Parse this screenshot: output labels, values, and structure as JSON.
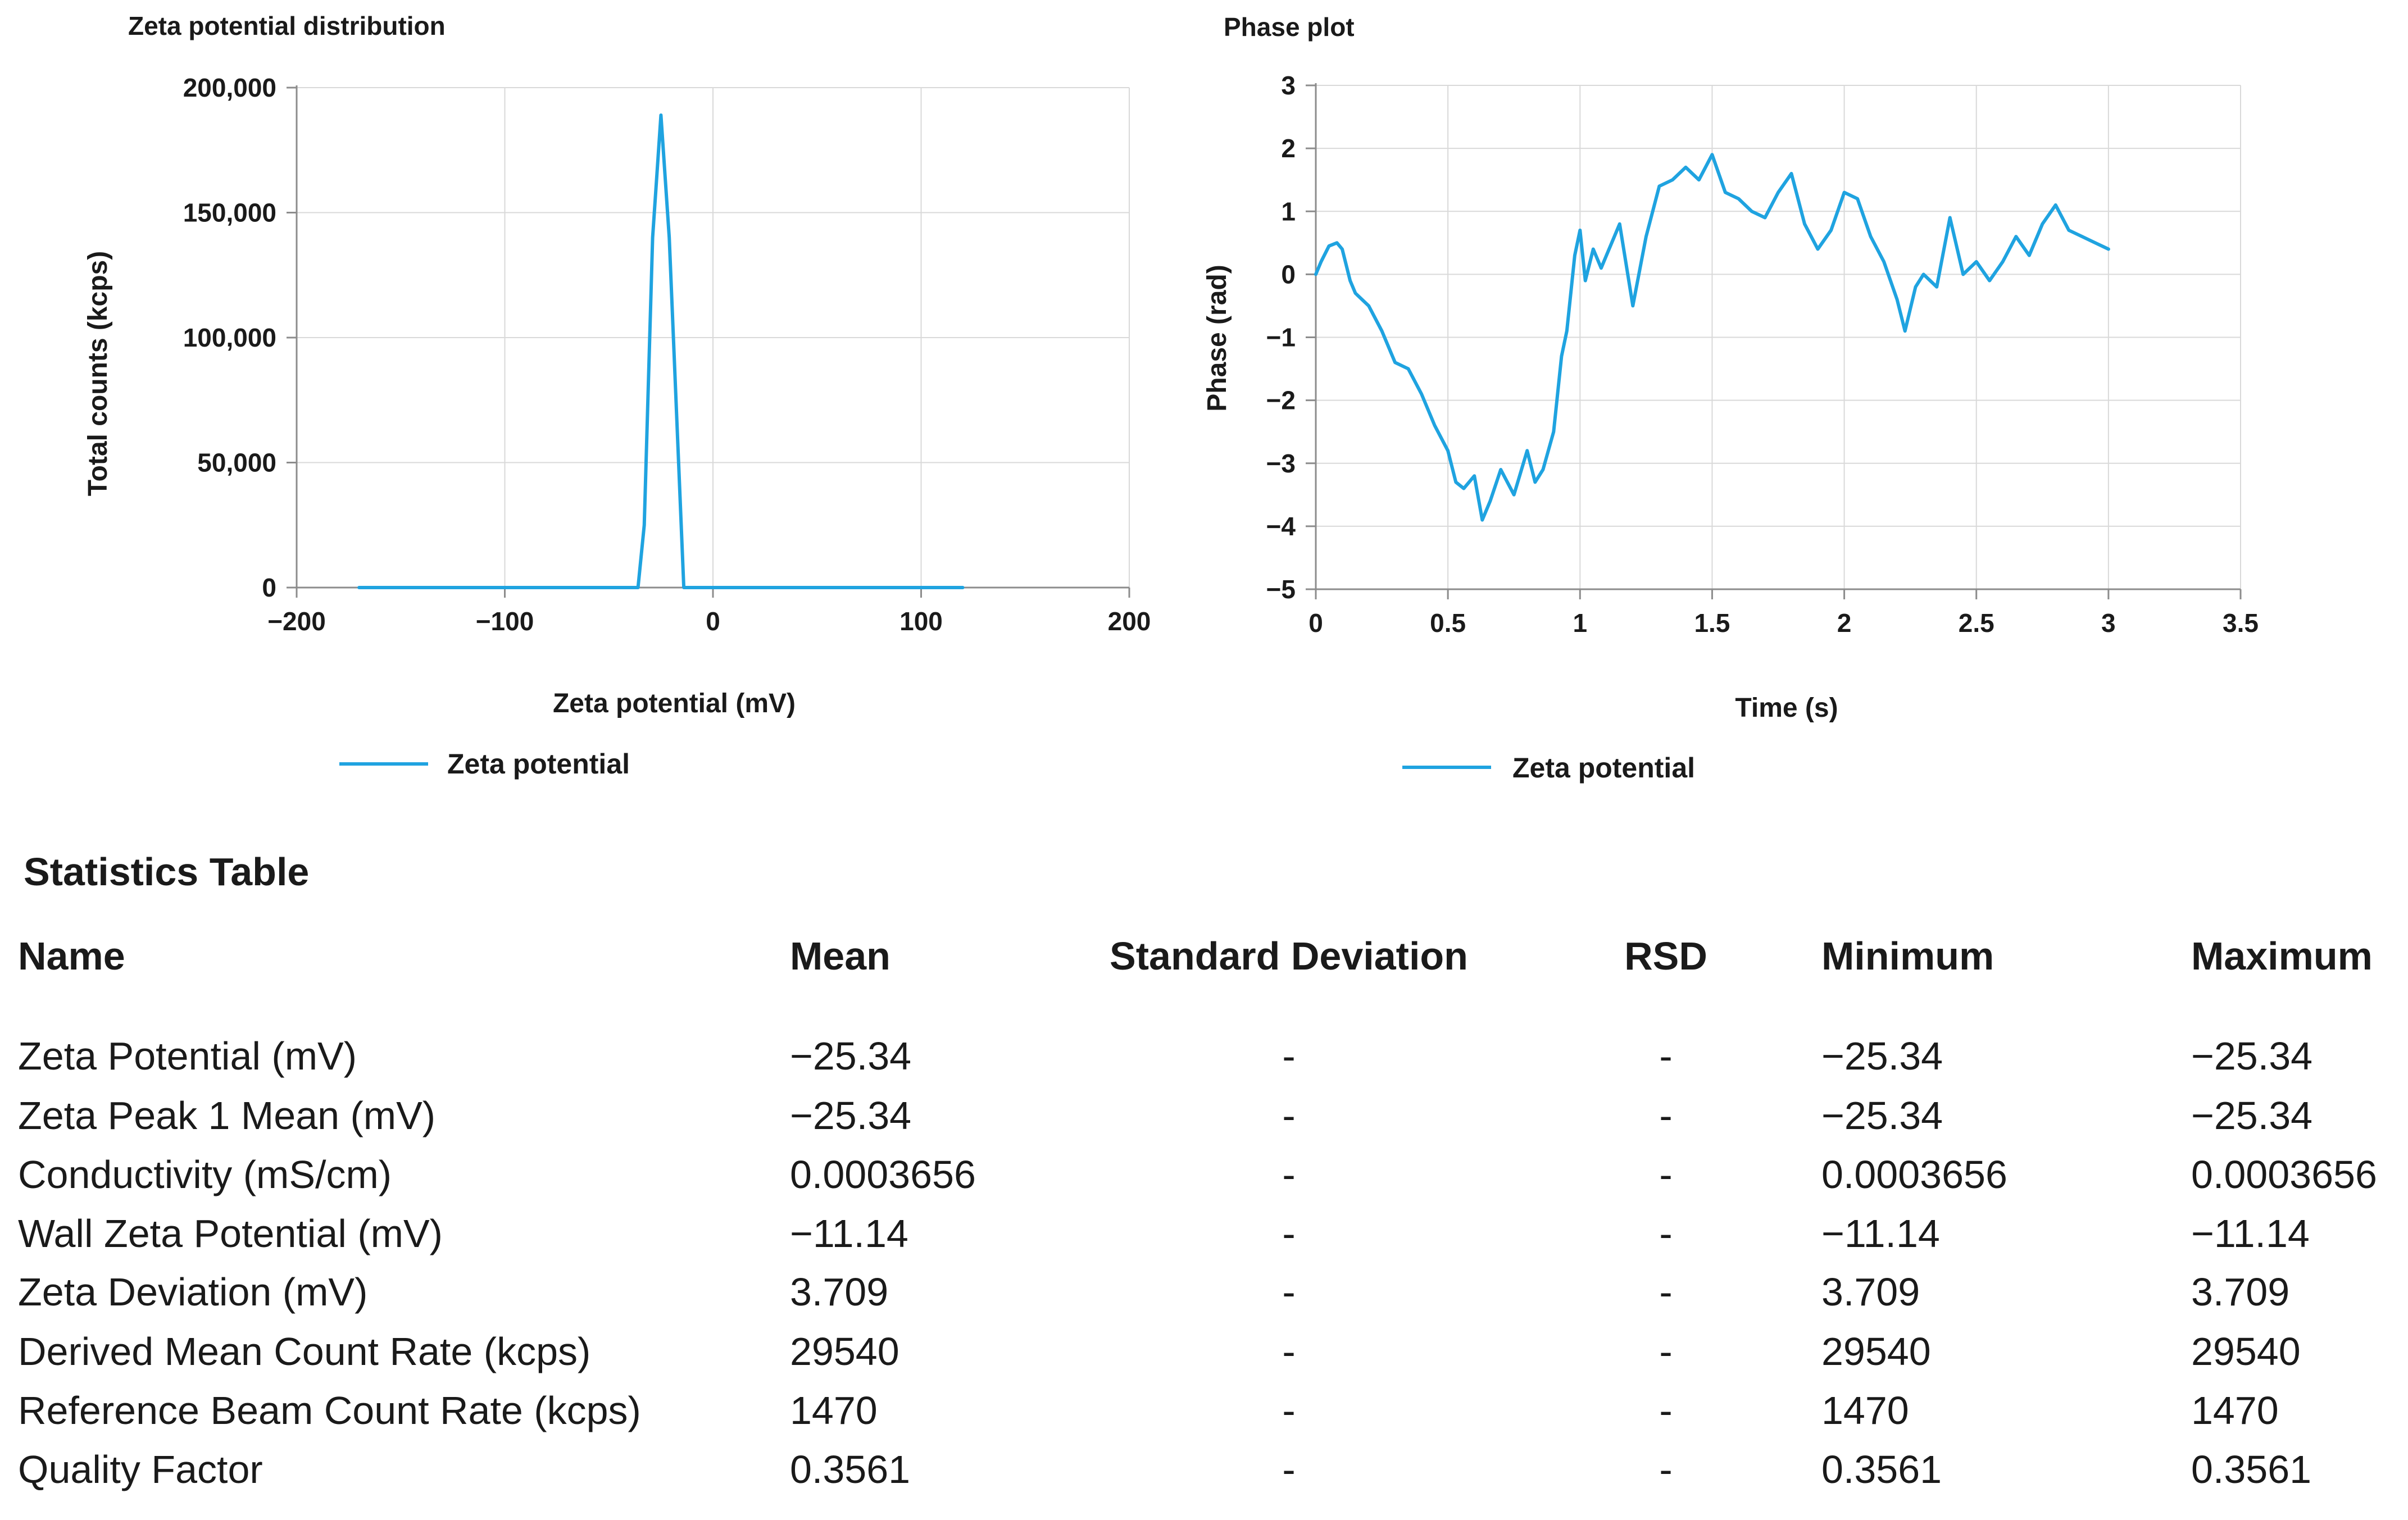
{
  "chart_data": [
    {
      "type": "line",
      "title": "Zeta potential distribution",
      "xlabel": "Zeta potential (mV)",
      "ylabel": "Total counts (kcps)",
      "xlim": [
        -200,
        200
      ],
      "ylim": [
        0,
        200000
      ],
      "xticks": [
        -200,
        -100,
        0,
        100,
        200
      ],
      "xtick_labels": [
        "−200",
        "−100",
        "0",
        "100",
        "200"
      ],
      "yticks": [
        0,
        50000,
        100000,
        150000,
        200000
      ],
      "ytick_labels": [
        "0",
        "50,000",
        "100,000",
        "150,000",
        "200,000"
      ],
      "grid": true,
      "legend": "bottom-left",
      "series": [
        {
          "name": "Zeta potential",
          "color": "#1fa3e0",
          "x": [
            -170,
            -36,
            -33,
            -29,
            -25,
            -21,
            -17,
            -14,
            120
          ],
          "y": [
            0,
            0,
            25000,
            140000,
            189000,
            140000,
            60000,
            0,
            0
          ]
        }
      ]
    },
    {
      "type": "line",
      "title": "Phase plot",
      "xlabel": "Time (s)",
      "ylabel": "Phase (rad)",
      "xlim": [
        0,
        3.5
      ],
      "ylim": [
        -5,
        3
      ],
      "xticks": [
        0,
        0.5,
        1,
        1.5,
        2,
        2.5,
        3,
        3.5
      ],
      "xtick_labels": [
        "0",
        "0.5",
        "1",
        "1.5",
        "2",
        "2.5",
        "3",
        "3.5"
      ],
      "yticks": [
        -5,
        -4,
        -3,
        -2,
        -1,
        0,
        1,
        2,
        3
      ],
      "ytick_labels": [
        "−5",
        "−4",
        "−3",
        "−2",
        "−1",
        "0",
        "1",
        "2",
        "3"
      ],
      "grid": true,
      "legend": "bottom-left",
      "series": [
        {
          "name": "Zeta potential",
          "color": "#1fa3e0",
          "x": [
            0,
            0.02,
            0.05,
            0.08,
            0.1,
            0.13,
            0.15,
            0.2,
            0.25,
            0.3,
            0.35,
            0.4,
            0.45,
            0.5,
            0.53,
            0.56,
            0.6,
            0.63,
            0.66,
            0.7,
            0.75,
            0.8,
            0.83,
            0.86,
            0.9,
            0.93,
            0.95,
            0.98,
            1.0,
            1.02,
            1.05,
            1.08,
            1.1,
            1.15,
            1.2,
            1.25,
            1.3,
            1.35,
            1.4,
            1.45,
            1.5,
            1.55,
            1.6,
            1.65,
            1.7,
            1.75,
            1.8,
            1.85,
            1.9,
            1.95,
            2.0,
            2.05,
            2.1,
            2.15,
            2.2,
            2.23,
            2.27,
            2.3,
            2.35,
            2.4,
            2.45,
            2.5,
            2.55,
            2.6,
            2.65,
            2.7,
            2.75,
            2.8,
            2.85,
            2.9,
            2.95,
            3.0
          ],
          "y": [
            0,
            0.2,
            0.45,
            0.5,
            0.4,
            -0.1,
            -0.3,
            -0.5,
            -0.9,
            -1.4,
            -1.5,
            -1.9,
            -2.4,
            -2.8,
            -3.3,
            -3.4,
            -3.2,
            -3.9,
            -3.6,
            -3.1,
            -3.5,
            -2.8,
            -3.3,
            -3.1,
            -2.5,
            -1.3,
            -0.9,
            0.3,
            0.7,
            -0.1,
            0.4,
            0.1,
            0.3,
            0.8,
            -0.5,
            0.6,
            1.4,
            1.5,
            1.7,
            1.5,
            1.9,
            1.3,
            1.2,
            1.0,
            0.9,
            1.3,
            1.6,
            0.8,
            0.4,
            0.7,
            1.3,
            1.2,
            0.6,
            0.2,
            -0.4,
            -0.9,
            -0.2,
            0.0,
            -0.2,
            0.9,
            0.0,
            0.2,
            -0.1,
            0.2,
            0.6,
            0.3,
            0.8,
            1.1,
            0.7,
            0.6,
            0.5,
            0.4
          ]
        }
      ]
    }
  ],
  "statistics": {
    "title": "Statistics Table",
    "headers": [
      "Name",
      "Mean",
      "Standard Deviation",
      "RSD",
      "Minimum",
      "Maximum"
    ],
    "rows": [
      [
        "Zeta Potential (mV)",
        "−25.34",
        "-",
        "-",
        "−25.34",
        "−25.34"
      ],
      [
        "Zeta Peak 1 Mean (mV)",
        "−25.34",
        "-",
        "-",
        "−25.34",
        "−25.34"
      ],
      [
        "Conductivity (mS/cm)",
        "0.0003656",
        "-",
        "-",
        "0.0003656",
        "0.0003656"
      ],
      [
        "Wall Zeta Potential (mV)",
        "−11.14",
        "-",
        "-",
        "−11.14",
        "−11.14"
      ],
      [
        "Zeta Deviation (mV)",
        "3.709",
        "-",
        "-",
        "3.709",
        "3.709"
      ],
      [
        "Derived Mean Count Rate (kcps)",
        "29540",
        "-",
        "-",
        "29540",
        "29540"
      ],
      [
        "Reference Beam Count Rate (kcps)",
        "1470",
        "-",
        "-",
        "1470",
        "1470"
      ],
      [
        "Quality Factor",
        "0.3561",
        "-",
        "-",
        "0.3561",
        "0.3561"
      ]
    ]
  }
}
